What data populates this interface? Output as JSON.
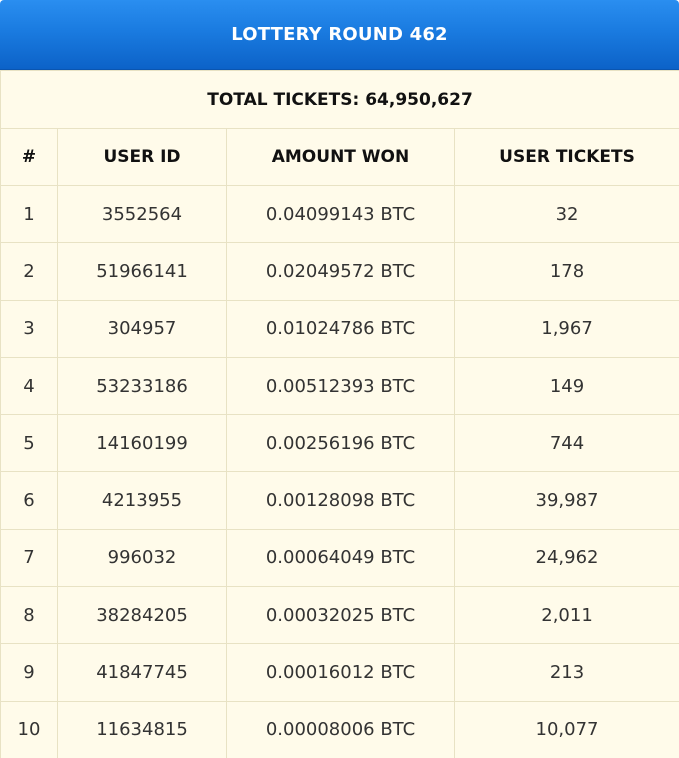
{
  "header": {
    "title": "LOTTERY ROUND 462"
  },
  "summary": {
    "total_label": "TOTAL TICKETS: 64,950,627"
  },
  "table": {
    "columns": [
      "#",
      "USER ID",
      "AMOUNT WON",
      "USER TICKETS"
    ],
    "rows": [
      {
        "rank": "1",
        "user_id": "3552564",
        "amount": "0.04099143 BTC",
        "tickets": "32"
      },
      {
        "rank": "2",
        "user_id": "51966141",
        "amount": "0.02049572 BTC",
        "tickets": "178"
      },
      {
        "rank": "3",
        "user_id": "304957",
        "amount": "0.01024786 BTC",
        "tickets": "1,967"
      },
      {
        "rank": "4",
        "user_id": "53233186",
        "amount": "0.00512393 BTC",
        "tickets": "149"
      },
      {
        "rank": "5",
        "user_id": "14160199",
        "amount": "0.00256196 BTC",
        "tickets": "744"
      },
      {
        "rank": "6",
        "user_id": "4213955",
        "amount": "0.00128098 BTC",
        "tickets": "39,987"
      },
      {
        "rank": "7",
        "user_id": "996032",
        "amount": "0.00064049 BTC",
        "tickets": "24,962"
      },
      {
        "rank": "8",
        "user_id": "38284205",
        "amount": "0.00032025 BTC",
        "tickets": "2,011"
      },
      {
        "rank": "9",
        "user_id": "41847745",
        "amount": "0.00016012 BTC",
        "tickets": "213"
      },
      {
        "rank": "10",
        "user_id": "11634815",
        "amount": "0.00008006 BTC",
        "tickets": "10,077"
      }
    ]
  },
  "colors": {
    "header_blue": "#1a7be0",
    "table_bg": "#fffbea",
    "border": "#e8e2c4"
  }
}
